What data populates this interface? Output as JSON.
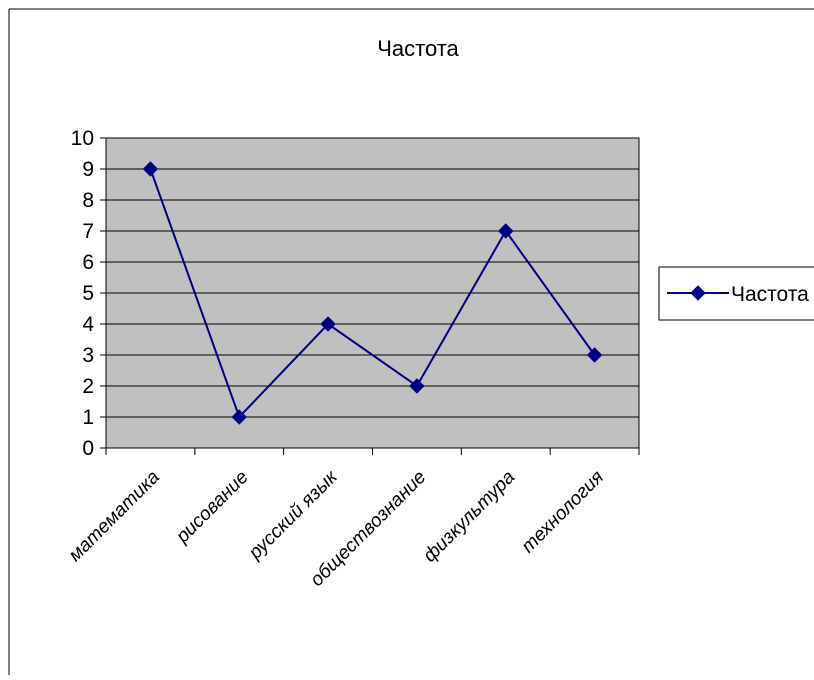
{
  "chart_data": {
    "type": "line",
    "title": "Частота",
    "xlabel": "",
    "ylabel": "",
    "categories": [
      "математика",
      "рисование",
      "русский язык",
      "обществознание",
      "физкультура",
      "технология"
    ],
    "series": [
      {
        "name": "Частота",
        "values": [
          9,
          1,
          4,
          2,
          7,
          3
        ],
        "color": "#000080",
        "marker": "diamond"
      }
    ],
    "ylim": [
      0,
      10
    ],
    "yticks": [
      0,
      1,
      2,
      3,
      4,
      5,
      6,
      7,
      8,
      9,
      10
    ],
    "grid": true,
    "plot_background": "#c0c0c0",
    "legend_position": "right"
  }
}
